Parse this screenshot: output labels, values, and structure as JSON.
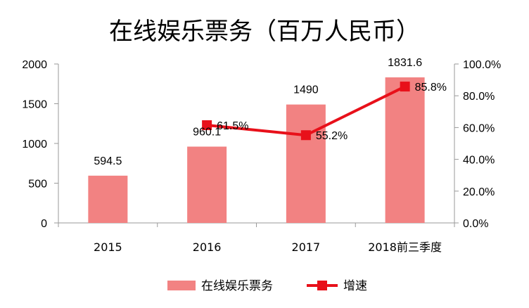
{
  "chart_data": {
    "type": "bar",
    "title": "在线娱乐票务（百万人民币）",
    "categories": [
      "2015",
      "2016",
      "2017",
      "2018前三季度"
    ],
    "series": [
      {
        "name": "在线娱乐票务",
        "type": "bar",
        "axis": "left",
        "color": "#f28282",
        "values": [
          594.5,
          960.1,
          1490,
          1831.6
        ],
        "labels": [
          "594.5",
          "960.1",
          "1490",
          "1831.6"
        ]
      },
      {
        "name": "增速",
        "type": "line",
        "axis": "right",
        "color": "#e8101a",
        "values": [
          null,
          61.5,
          55.2,
          85.8
        ],
        "labels": [
          "",
          "61.5%",
          "55.2%",
          "85.8%"
        ]
      }
    ],
    "y_left": {
      "ylim": [
        0,
        2000
      ],
      "ticks": [
        "0",
        "500",
        "1000",
        "1500",
        "2000"
      ]
    },
    "y_right": {
      "ylim": [
        0,
        100
      ],
      "ticks": [
        "0.0%",
        "20.0%",
        "40.0%",
        "60.0%",
        "80.0%",
        "100.0%"
      ]
    },
    "grid": false,
    "legend": "bottom"
  }
}
